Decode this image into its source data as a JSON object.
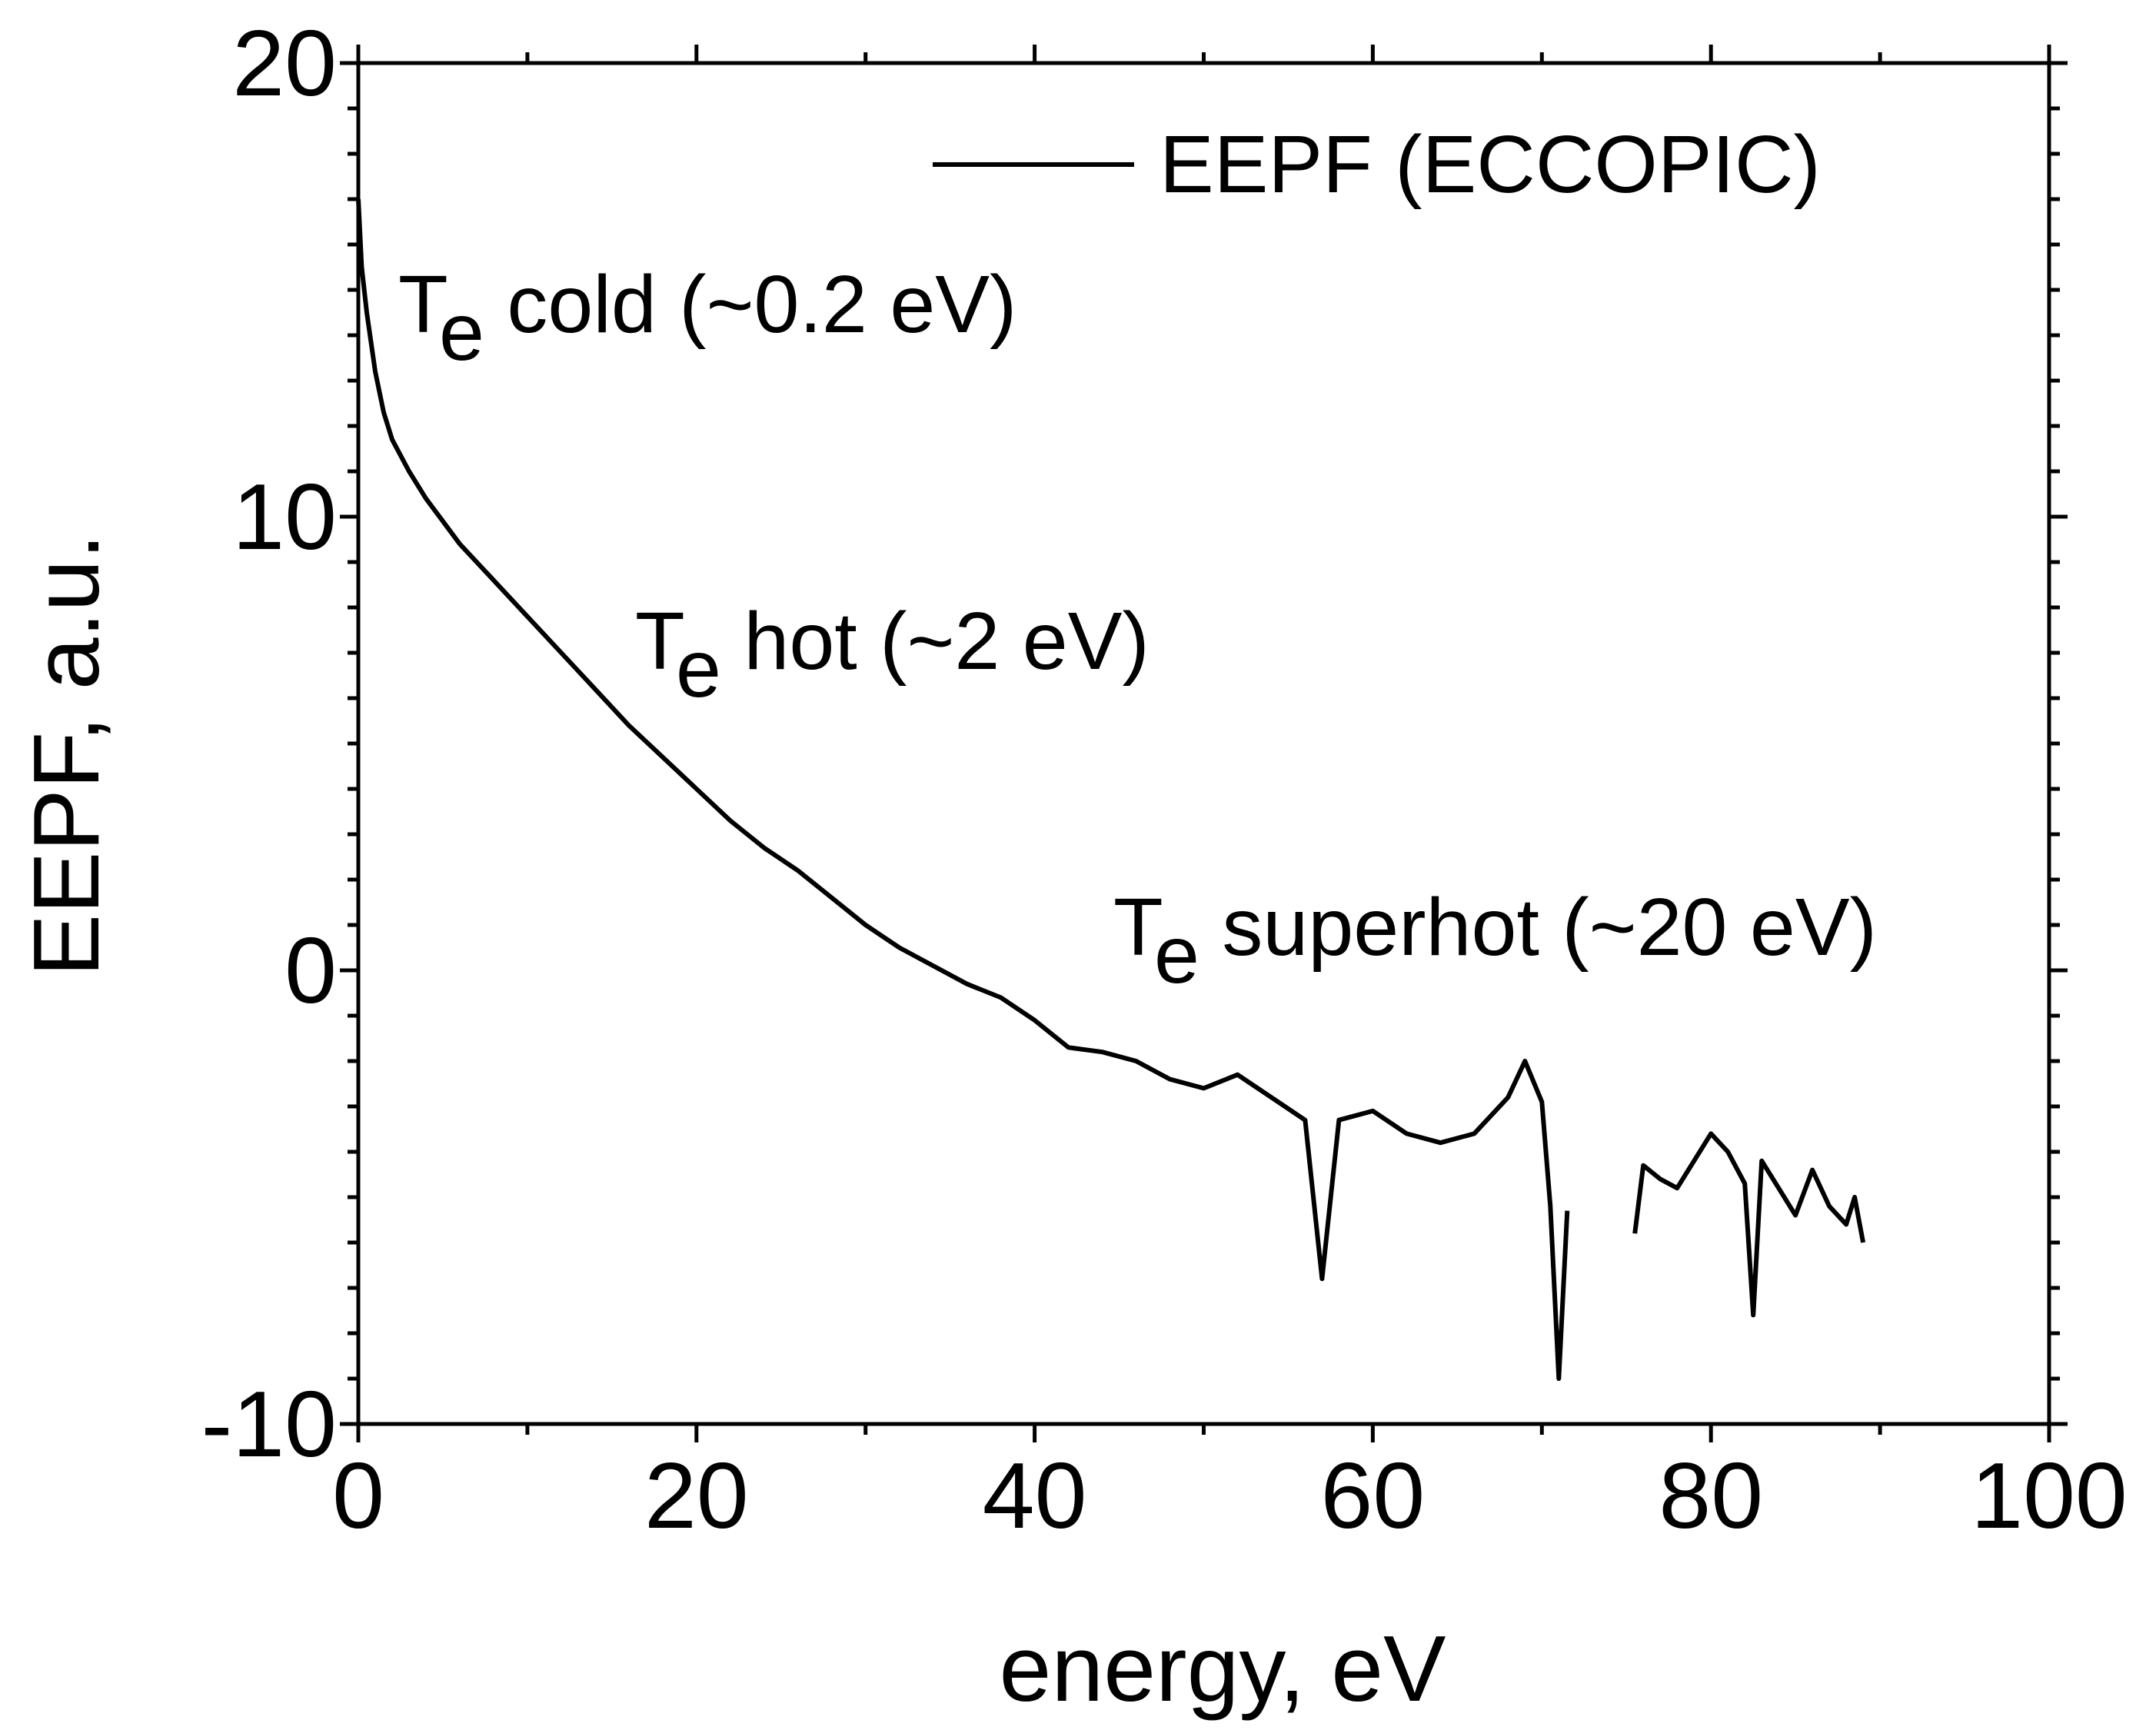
{
  "chart_data": {
    "type": "line",
    "title": "",
    "xlabel": "energy, eV",
    "ylabel": "EEPF, a.u.",
    "xlim": [
      0,
      100
    ],
    "ylim": [
      -10,
      20
    ],
    "x_ticks": [
      0,
      20,
      40,
      60,
      80,
      100
    ],
    "y_ticks": [
      -10,
      0,
      10,
      20
    ],
    "x_tick_labels": [
      "0",
      "20",
      "40",
      "60",
      "80",
      "100"
    ],
    "y_tick_labels": [
      "-10",
      "0",
      "10",
      "20"
    ],
    "grid": false,
    "legend": {
      "position": "top-right",
      "entries": [
        "EEPF (ECCOPIC)"
      ]
    },
    "series": [
      {
        "name": "EEPF (ECCOPIC)",
        "color": "#000000",
        "segments": [
          {
            "x": [
              0,
              0.2,
              0.5,
              1,
              1.5,
              2,
              3,
              4,
              5,
              6,
              8,
              10,
              12,
              14,
              16,
              18,
              20,
              22,
              24,
              26,
              28,
              30,
              32,
              34,
              36,
              38,
              40,
              42,
              44,
              46,
              48,
              50,
              52,
              54,
              56,
              57,
              58,
              60,
              62,
              64,
              66,
              68,
              69,
              70,
              70.5,
              71,
              71.5
            ],
            "y": [
              17.0,
              15.5,
              14.5,
              13.2,
              12.3,
              11.7,
              11.0,
              10.4,
              9.9,
              9.4,
              8.6,
              7.8,
              7.0,
              6.2,
              5.4,
              4.7,
              4.0,
              3.3,
              2.7,
              2.2,
              1.6,
              1.0,
              0.5,
              0.1,
              -0.3,
              -0.6,
              -1.1,
              -1.7,
              -1.8,
              -2.0,
              -2.4,
              -2.6,
              -2.3,
              -2.8,
              -3.3,
              -6.8,
              -3.3,
              -3.1,
              -3.6,
              -3.8,
              -3.6,
              -2.8,
              -2.0,
              -2.9,
              -5.2,
              -9.0,
              -5.3
            ]
          },
          {
            "x": [
              75.5,
              76,
              77,
              78,
              79,
              80,
              81,
              82,
              82.5,
              83,
              84,
              85,
              86,
              87,
              88,
              88.5,
              89
            ],
            "y": [
              -5.8,
              -4.3,
              -4.6,
              -4.8,
              -4.2,
              -3.6,
              -4.0,
              -4.7,
              -7.6,
              -4.2,
              -4.8,
              -5.4,
              -4.4,
              -5.2,
              -5.6,
              -5.0,
              -6.0
            ]
          }
        ]
      }
    ],
    "annotations": [
      {
        "main": "T",
        "sub": "e",
        "text": " cold (~0.2 eV)"
      },
      {
        "main": "T",
        "sub": "e",
        "text": " hot (~2 eV)"
      },
      {
        "main": "T",
        "sub": "e",
        "text": " superhot (~20 eV)"
      }
    ]
  }
}
